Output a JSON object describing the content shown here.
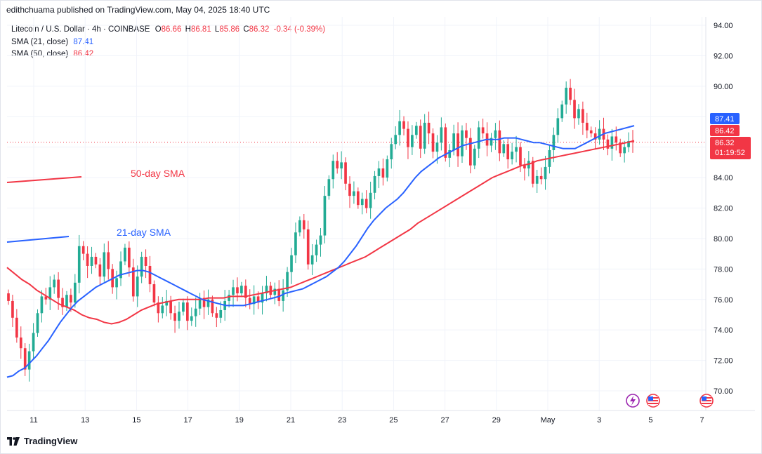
{
  "header": {
    "published": "edithchuama published on TradingView.com, May 04, 2025 18:40 UTC"
  },
  "legend": {
    "symbol": "Litecoin / U.S. Dollar · 4h · COINBASE",
    "ohlc": [
      {
        "label": "O",
        "value": "86.66"
      },
      {
        "label": "H",
        "value": "86.81"
      },
      {
        "label": "L",
        "value": "85.86"
      },
      {
        "label": "C",
        "value": "86.32"
      }
    ],
    "change": "-0.34 (-0.39%)",
    "sma21_label": "SMA (21, close)",
    "sma21_value": "87.41",
    "sma50_label": "SMA (50, close)",
    "sma50_value": "86.42"
  },
  "colors": {
    "up": "#22ab94",
    "down": "#f23645",
    "sma21": "#2962ff",
    "sma50": "#f23645",
    "grid": "#f0f3fa"
  },
  "price_labels": {
    "sma21": "87.41",
    "sma50": "86.42",
    "last": "86.32",
    "countdown": "01:19:52"
  },
  "annotations": [
    {
      "text": "50-day SMA",
      "color": "#f23645"
    },
    {
      "text": "21-day SMA",
      "color": "#2962ff"
    }
  ],
  "event_icons": [
    "lightning-icon",
    "us-flag-icon",
    "us-flag-icon"
  ],
  "footer": {
    "brand": "TradingView"
  },
  "chart_data": {
    "type": "candlestick",
    "title": "Litecoin / U.S. Dollar · 4h · COINBASE",
    "y_ticks": [
      70,
      72,
      74,
      76,
      78,
      80,
      82,
      84,
      86,
      88,
      90,
      92,
      94
    ],
    "y_tick_labels": [
      "70.00",
      "72.00",
      "74.00",
      "76.00",
      "78.00",
      "80.00",
      "82.00",
      "84.00",
      "86.00",
      "88.00",
      "90.00",
      "92.00",
      "94.00"
    ],
    "ylim": [
      69.2,
      94.9
    ],
    "xlim": [
      10.1,
      7.6
    ],
    "x_ticks": [
      {
        "label": "11",
        "day": 11
      },
      {
        "label": "13",
        "day": 13
      },
      {
        "label": "15",
        "day": 15
      },
      {
        "label": "17",
        "day": 17
      },
      {
        "label": "19",
        "day": 19
      },
      {
        "label": "21",
        "day": 21
      },
      {
        "label": "23",
        "day": 23
      },
      {
        "label": "25",
        "day": 25
      },
      {
        "label": "27",
        "day": 27
      },
      {
        "label": "29",
        "day": 29
      },
      {
        "label": "May",
        "day": 31
      },
      {
        "label": "3",
        "day": 33
      },
      {
        "label": "5",
        "day": 35
      },
      {
        "label": "7",
        "day": 37
      }
    ],
    "last_price": 86.32,
    "candles_close": [
      75.9,
      74.8,
      73.5,
      72.8,
      71.4,
      72.6,
      73.8,
      75.1,
      76.2,
      76.0,
      76.8,
      77.3,
      76.1,
      75.5,
      76.3,
      75.8,
      77.1,
      79.5,
      79.0,
      78.2,
      78.8,
      78.3,
      77.5,
      79.1,
      78.0,
      76.8,
      77.4,
      78.5,
      79.4,
      78.1,
      76.2,
      77.5,
      78.8,
      78.2,
      77.0,
      75.8,
      75.1,
      75.6,
      75.9,
      75.1,
      74.6,
      75.2,
      75.8,
      74.6,
      74.9,
      75.4,
      76.1,
      75.5,
      76.0,
      75.1,
      74.8,
      75.3,
      75.9,
      76.3,
      76.8,
      76.4,
      76.9,
      76.1,
      75.7,
      76.2,
      75.8,
      76.4,
      76.9,
      76.3,
      76.7,
      75.9,
      76.6,
      77.8,
      78.9,
      80.4,
      81.2,
      80.6,
      78.3,
      78.9,
      79.6,
      80.2,
      82.8,
      83.9,
      85.1,
      84.6,
      85.0,
      83.6,
      82.8,
      83.1,
      82.2,
      82.6,
      82.0,
      83.0,
      84.1,
      84.6,
      84.0,
      85.2,
      86.2,
      86.8,
      87.7,
      87.2,
      86.0,
      86.8,
      87.4,
      85.9,
      87.6,
      86.9,
      85.7,
      86.3,
      87.3,
      85.3,
      85.8,
      86.9,
      85.4,
      87.1,
      86.6,
      84.8,
      85.9,
      87.3,
      86.9,
      86.1,
      86.6,
      87.1,
      85.6,
      86.2,
      85.2,
      85.7,
      86.0,
      84.8,
      84.6,
      85.1,
      83.6,
      84.1,
      83.9,
      84.7,
      85.8,
      86.8,
      87.9,
      88.8,
      89.9,
      89.1,
      87.9,
      88.5,
      87.6,
      87.1,
      86.9,
      86.5,
      87.2,
      86.5,
      85.9,
      86.7,
      86.3,
      85.6,
      86.0,
      86.4,
      86.32
    ],
    "sma21": [
      70.9,
      71.0,
      71.3,
      71.5,
      71.9,
      72.3,
      72.8,
      73.3,
      73.9,
      74.5,
      75.0,
      75.5,
      75.9,
      76.2,
      76.5,
      76.8,
      77.0,
      77.2,
      77.4,
      77.6,
      77.7,
      77.8,
      77.9,
      77.9,
      77.8,
      77.6,
      77.4,
      77.2,
      77.0,
      76.8,
      76.6,
      76.4,
      76.2,
      76.0,
      75.9,
      75.8,
      75.7,
      75.6,
      75.6,
      75.6,
      75.6,
      75.7,
      75.8,
      75.9,
      76.0,
      76.1,
      76.2,
      76.4,
      76.5,
      76.6,
      76.7,
      76.9,
      77.1,
      77.3,
      77.5,
      77.8,
      78.1,
      78.5,
      79.0,
      79.5,
      80.1,
      80.7,
      81.2,
      81.6,
      82.0,
      82.3,
      82.6,
      83.0,
      83.5,
      84.0,
      84.4,
      84.7,
      85.0,
      85.3,
      85.5,
      85.7,
      85.9,
      86.1,
      86.2,
      86.3,
      86.4,
      86.5,
      86.5,
      86.5,
      86.6,
      86.6,
      86.6,
      86.5,
      86.4,
      86.3,
      86.3,
      86.2,
      86.1,
      86.0,
      85.9,
      85.9,
      85.9,
      86.1,
      86.3,
      86.5,
      86.7,
      86.9,
      87.0,
      87.1,
      87.2,
      87.3,
      87.41
    ],
    "sma50": [
      78.1,
      77.7,
      77.3,
      77.0,
      76.6,
      76.3,
      76.0,
      75.7,
      75.5,
      75.3,
      75.0,
      74.8,
      74.7,
      74.5,
      74.4,
      74.5,
      74.7,
      75.0,
      75.3,
      75.5,
      75.7,
      75.8,
      75.9,
      76.0,
      76.0,
      76.0,
      76.0,
      76.1,
      76.1,
      76.1,
      76.2,
      76.2,
      76.2,
      76.3,
      76.4,
      76.5,
      76.6,
      76.7,
      76.8,
      77.0,
      77.2,
      77.4,
      77.6,
      77.8,
      78.0,
      78.2,
      78.4,
      78.6,
      78.8,
      79.1,
      79.4,
      79.7,
      80.0,
      80.3,
      80.6,
      81.0,
      81.3,
      81.6,
      81.9,
      82.2,
      82.5,
      82.8,
      83.1,
      83.4,
      83.7,
      84.0,
      84.2,
      84.4,
      84.6,
      84.8,
      84.9,
      85.1,
      85.2,
      85.3,
      85.4,
      85.5,
      85.6,
      85.7,
      85.8,
      85.9,
      86.0,
      86.1,
      86.2,
      86.3,
      86.42
    ]
  }
}
